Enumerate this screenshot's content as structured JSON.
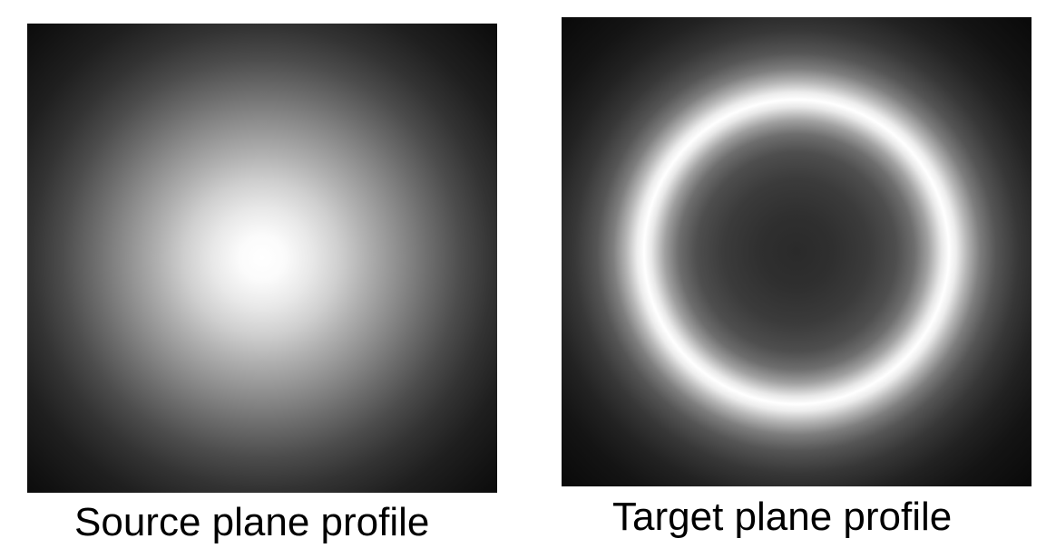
{
  "source": {
    "caption": "Source plane profile"
  },
  "target": {
    "caption": "Target plane profile"
  }
}
